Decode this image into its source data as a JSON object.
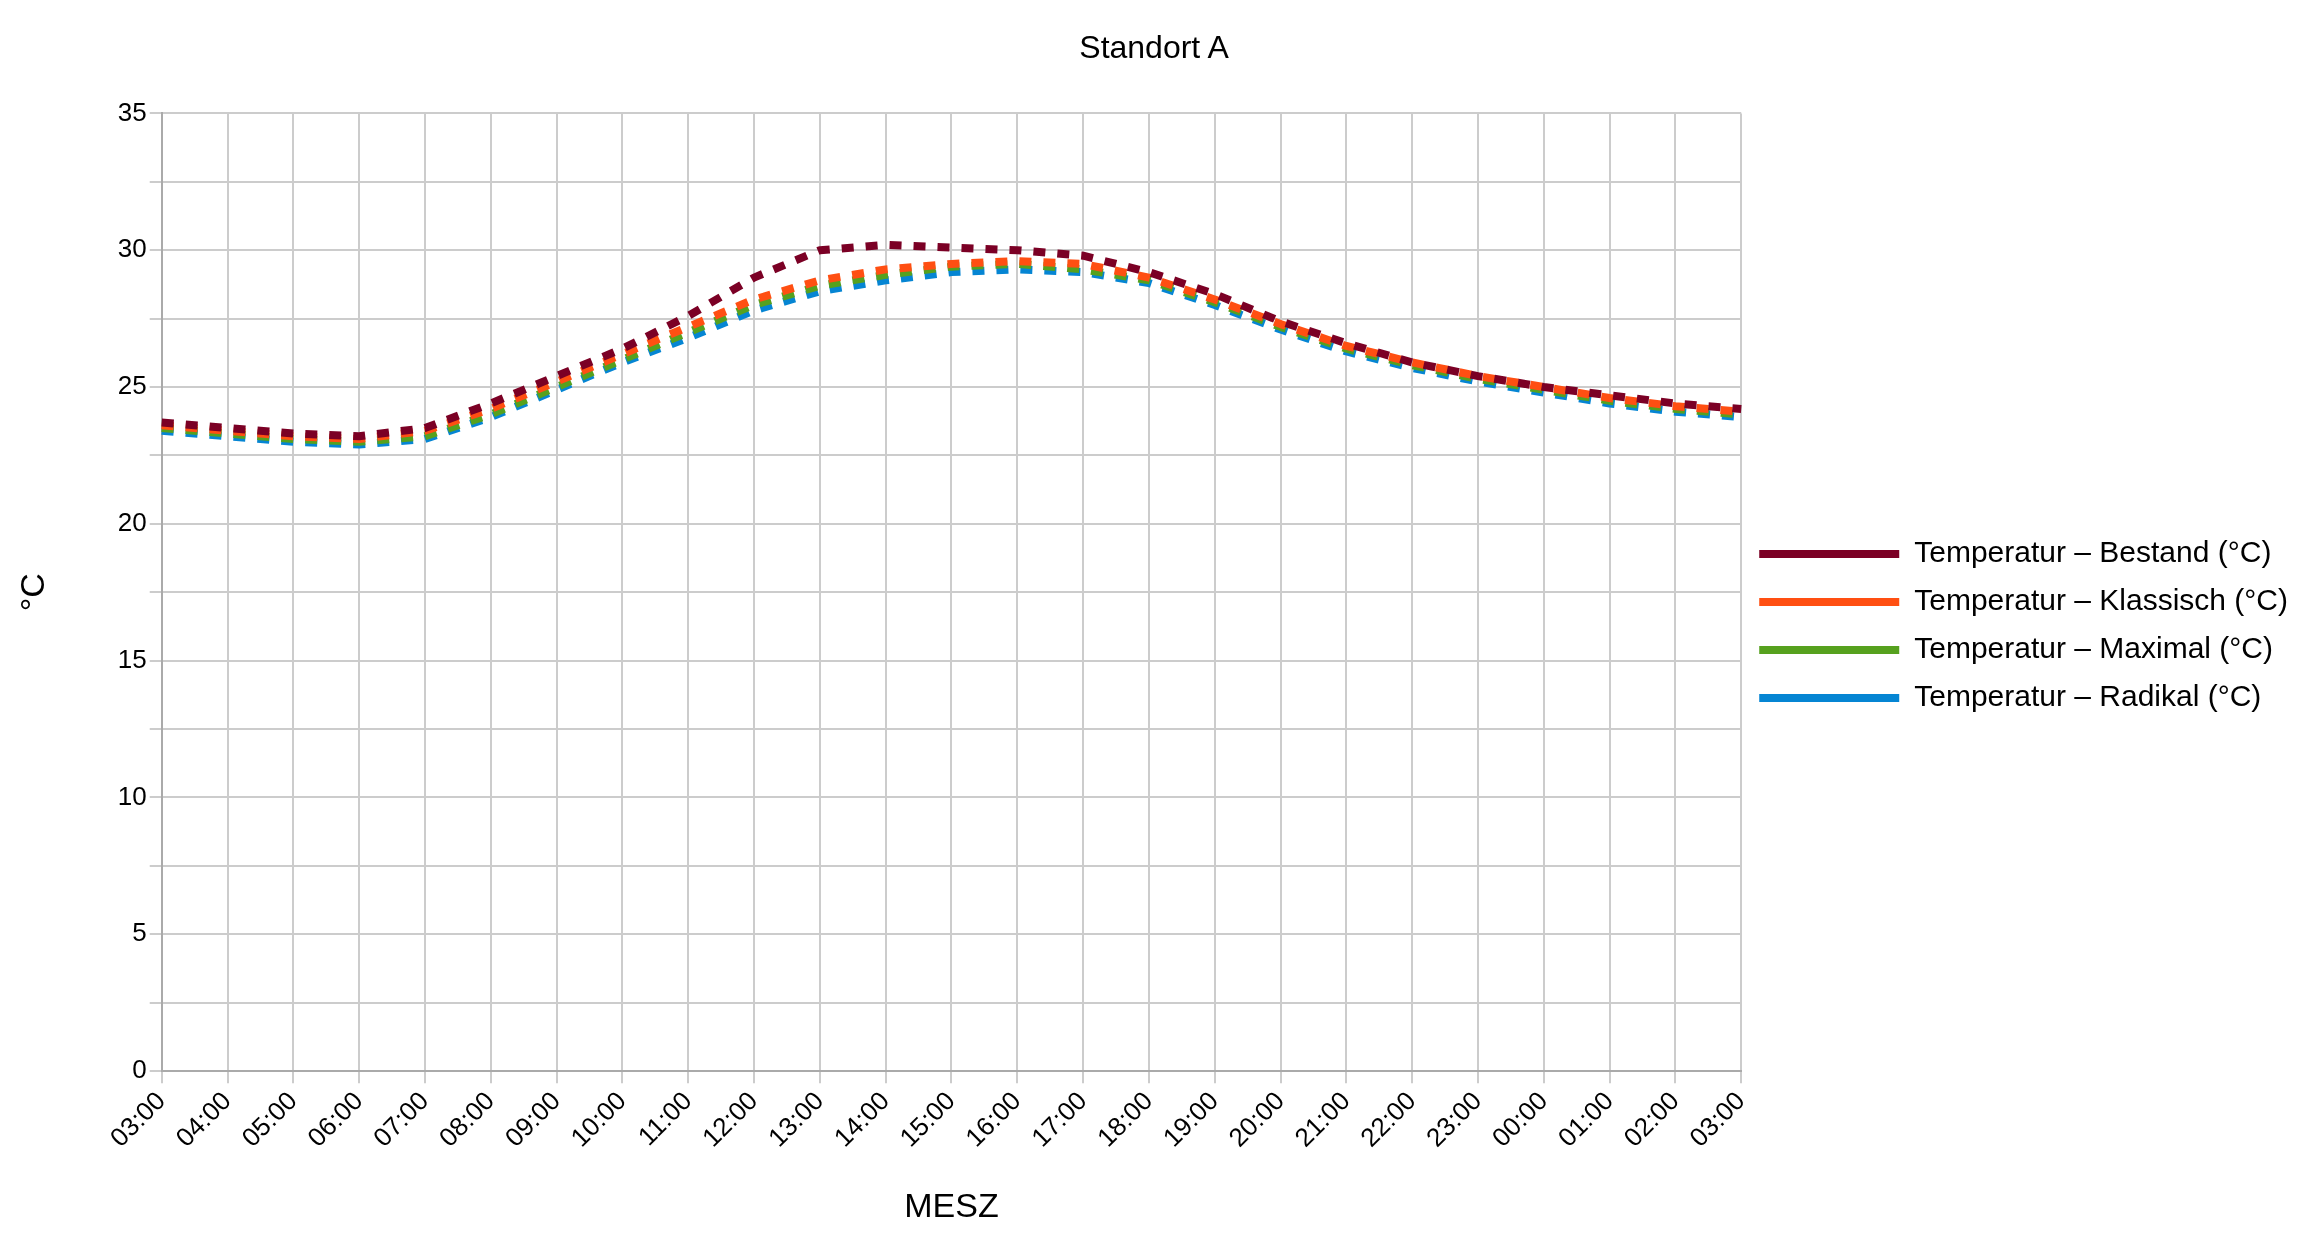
{
  "chart_data": {
    "type": "line",
    "title": "Standort A",
    "xlabel": "MESZ",
    "ylabel": "°C",
    "categories": [
      "03:00",
      "04:00",
      "05:00",
      "06:00",
      "07:00",
      "08:00",
      "09:00",
      "10:00",
      "11:00",
      "12:00",
      "13:00",
      "14:00",
      "15:00",
      "16:00",
      "17:00",
      "18:00",
      "19:00",
      "20:00",
      "21:00",
      "22:00",
      "23:00",
      "00:00",
      "01:00",
      "02:00",
      "03:00"
    ],
    "series": [
      {
        "name": "Temperatur – Bestand (°C)",
        "color": "#7b0025",
        "values": [
          23.7,
          23.5,
          23.3,
          23.2,
          23.5,
          24.4,
          25.4,
          26.4,
          27.6,
          29.0,
          30.0,
          30.2,
          30.1,
          30.0,
          29.8,
          29.2,
          28.4,
          27.4,
          26.6,
          25.9,
          25.4,
          25.0,
          24.7,
          24.4,
          24.2
        ]
      },
      {
        "name": "Temperatur – Klassisch (°C)",
        "color": "#ff4f12",
        "values": [
          23.6,
          23.4,
          23.2,
          23.1,
          23.4,
          24.2,
          25.2,
          26.2,
          27.2,
          28.2,
          28.9,
          29.3,
          29.5,
          29.6,
          29.5,
          29.0,
          28.2,
          27.3,
          26.5,
          25.9,
          25.4,
          25.0,
          24.6,
          24.3,
          24.1
        ]
      },
      {
        "name": "Temperatur – Maximal (°C)",
        "color": "#56a11e",
        "values": [
          23.5,
          23.3,
          23.1,
          23.0,
          23.2,
          24.0,
          25.0,
          26.0,
          27.0,
          28.0,
          28.7,
          29.1,
          29.4,
          29.5,
          29.3,
          28.9,
          28.1,
          27.2,
          26.4,
          25.8,
          25.3,
          24.9,
          24.5,
          24.2,
          24.0
        ]
      },
      {
        "name": "Temperatur – Radikal (°C)",
        "color": "#0585d3",
        "values": [
          23.4,
          23.2,
          23.0,
          22.9,
          23.1,
          23.9,
          24.9,
          25.9,
          26.8,
          27.8,
          28.5,
          28.9,
          29.2,
          29.3,
          29.2,
          28.8,
          28.0,
          27.1,
          26.3,
          25.7,
          25.2,
          24.8,
          24.4,
          24.1,
          23.9
        ]
      }
    ],
    "ylim": [
      0,
      35
    ],
    "yticks": [
      0,
      {
        "value": 2.5,
        "label": null
      },
      5,
      {
        "value": 7.5,
        "label": null
      },
      10,
      {
        "value": 12.5,
        "label": null
      },
      15,
      {
        "value": 17.5,
        "label": null
      },
      20,
      {
        "value": 22.5,
        "label": null
      },
      25,
      {
        "value": 27.5,
        "label": null
      },
      30,
      {
        "value": 32.5,
        "label": null
      },
      35
    ],
    "grid": true,
    "legend": "right",
    "marker": "none",
    "line_style": "dashed"
  }
}
